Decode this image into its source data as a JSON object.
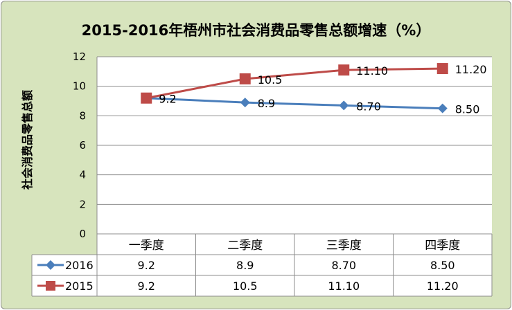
{
  "chart_data": {
    "type": "line",
    "title": "2015-2016年梧州市社会消费品零售总额增速（%）",
    "ylabel": "社会消费品零售总额",
    "xlabel": "",
    "categories": [
      "一季度",
      "二季度",
      "三季度",
      "四季度"
    ],
    "ylim": [
      0,
      12
    ],
    "yticks": [
      "0",
      "2",
      "4",
      "6",
      "8",
      "10",
      "12"
    ],
    "grid": true,
    "legend_placement": "data-table",
    "series": [
      {
        "name": "2016",
        "values": [
          9.2,
          8.9,
          8.7,
          8.5
        ],
        "labels": [
          "9.2",
          "8.9",
          "8.70",
          "8.50"
        ],
        "color": "#4a7ebb",
        "marker": "diamond"
      },
      {
        "name": "2015",
        "values": [
          9.2,
          10.5,
          11.1,
          11.2
        ],
        "labels": [
          "9.2",
          "10.5",
          "11.10",
          "11.20"
        ],
        "color": "#be4b48",
        "marker": "square"
      }
    ]
  }
}
